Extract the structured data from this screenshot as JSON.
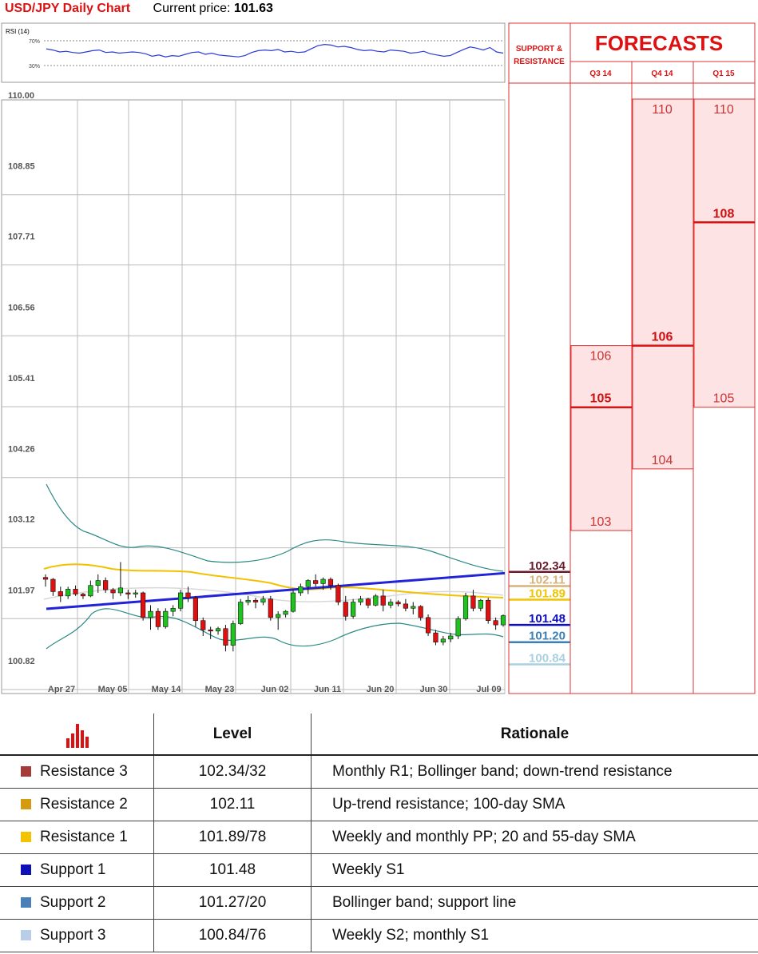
{
  "header": {
    "title": "USD/JPY Daily Chart",
    "price_label": "Current price:",
    "price": "101.63"
  },
  "rsi": {
    "label": "RSI (14)",
    "levels": [
      "70%",
      "30%"
    ],
    "values": [
      57,
      55,
      52,
      53,
      51,
      50,
      52,
      54,
      55,
      51,
      52,
      50,
      51,
      52,
      51,
      49,
      45,
      47,
      44,
      46,
      45,
      48,
      51,
      52,
      48,
      50,
      47,
      46,
      45,
      44,
      46,
      51,
      54,
      55,
      54,
      56,
      52,
      53,
      51,
      52,
      57,
      62,
      64,
      63,
      60,
      61,
      59,
      56,
      54,
      55,
      53,
      52,
      55,
      54,
      53,
      50,
      51,
      53,
      49,
      47,
      45,
      46,
      51,
      56,
      60,
      58,
      55,
      59,
      52,
      50
    ]
  },
  "chart_data": {
    "type": "candlestick",
    "title": "USD/JPY Daily Chart",
    "ylim": [
      100.82,
      110.0
    ],
    "y_ticks": [
      "110.00",
      "108.85",
      "107.71",
      "106.56",
      "105.41",
      "104.26",
      "103.12",
      "101.97",
      "100.82"
    ],
    "x_ticks": [
      "Apr 27",
      "May 05",
      "May 14",
      "May 23",
      "Jun 02",
      "Jun 11",
      "Jun 20",
      "Jun 30",
      "Jul 09"
    ],
    "ohlc": [
      [
        102.25,
        102.3,
        102.1,
        102.22
      ],
      [
        102.22,
        102.24,
        101.95,
        102.02
      ],
      [
        102.02,
        102.1,
        101.85,
        101.95
      ],
      [
        101.95,
        102.1,
        101.9,
        102.06
      ],
      [
        102.06,
        102.12,
        101.95,
        101.98
      ],
      [
        101.98,
        102.0,
        101.9,
        101.95
      ],
      [
        101.95,
        102.2,
        101.93,
        102.12
      ],
      [
        102.12,
        102.3,
        102.0,
        102.2
      ],
      [
        102.2,
        102.25,
        102.0,
        102.05
      ],
      [
        102.05,
        102.08,
        101.9,
        102.0
      ],
      [
        102.0,
        102.5,
        101.95,
        102.08
      ],
      [
        102.0,
        102.05,
        101.9,
        101.98
      ],
      [
        101.98,
        102.05,
        101.92,
        102.0
      ],
      [
        102.0,
        102.02,
        101.55,
        101.6
      ],
      [
        101.6,
        101.8,
        101.4,
        101.7
      ],
      [
        101.7,
        101.75,
        101.4,
        101.45
      ],
      [
        101.45,
        101.75,
        101.42,
        101.7
      ],
      [
        101.7,
        101.8,
        101.62,
        101.75
      ],
      [
        101.75,
        102.05,
        101.7,
        102.0
      ],
      [
        102.0,
        102.1,
        101.85,
        101.92
      ],
      [
        101.92,
        101.95,
        101.45,
        101.55
      ],
      [
        101.55,
        101.6,
        101.3,
        101.4
      ],
      [
        101.4,
        101.45,
        101.25,
        101.38
      ],
      [
        101.38,
        101.45,
        101.32,
        101.42
      ],
      [
        101.42,
        101.48,
        101.05,
        101.15
      ],
      [
        101.15,
        101.55,
        101.05,
        101.5
      ],
      [
        101.5,
        101.9,
        101.48,
        101.85
      ],
      [
        101.85,
        101.95,
        101.8,
        101.88
      ],
      [
        101.88,
        101.92,
        101.75,
        101.85
      ],
      [
        101.85,
        101.95,
        101.8,
        101.9
      ],
      [
        101.9,
        101.95,
        101.55,
        101.6
      ],
      [
        101.6,
        101.7,
        101.4,
        101.65
      ],
      [
        101.65,
        101.72,
        101.6,
        101.7
      ],
      [
        101.7,
        102.05,
        101.68,
        102.0
      ],
      [
        102.0,
        102.15,
        101.95,
        102.1
      ],
      [
        102.1,
        102.22,
        101.98,
        102.2
      ],
      [
        102.2,
        102.3,
        102.1,
        102.15
      ],
      [
        102.15,
        102.25,
        102.05,
        102.22
      ],
      [
        102.22,
        102.25,
        102.05,
        102.12
      ],
      [
        102.12,
        102.15,
        101.8,
        101.85
      ],
      [
        101.85,
        101.95,
        101.55,
        101.62
      ],
      [
        101.62,
        101.9,
        101.58,
        101.85
      ],
      [
        101.85,
        101.95,
        101.8,
        101.9
      ],
      [
        101.9,
        101.92,
        101.75,
        101.8
      ],
      [
        101.8,
        101.98,
        101.78,
        101.95
      ],
      [
        101.95,
        102.05,
        101.7,
        101.8
      ],
      [
        101.8,
        101.9,
        101.75,
        101.85
      ],
      [
        101.85,
        101.88,
        101.78,
        101.82
      ],
      [
        101.82,
        101.9,
        101.7,
        101.75
      ],
      [
        101.75,
        101.85,
        101.65,
        101.78
      ],
      [
        101.78,
        101.8,
        101.55,
        101.6
      ],
      [
        101.6,
        101.65,
        101.3,
        101.35
      ],
      [
        101.35,
        101.4,
        101.15,
        101.2
      ],
      [
        101.2,
        101.3,
        101.15,
        101.25
      ],
      [
        101.25,
        101.35,
        101.2,
        101.3
      ],
      [
        101.3,
        101.62,
        101.25,
        101.58
      ],
      [
        101.58,
        102.0,
        101.55,
        101.95
      ],
      [
        101.95,
        102.05,
        101.7,
        101.75
      ],
      [
        101.75,
        101.9,
        101.7,
        101.88
      ],
      [
        101.88,
        101.92,
        101.5,
        101.55
      ],
      [
        101.55,
        101.6,
        101.4,
        101.48
      ],
      [
        101.48,
        101.65,
        101.45,
        101.63
      ]
    ],
    "sma_blue": [
      101.74,
      102.32
    ],
    "levels": [
      {
        "value": "102.34",
        "color": "#6b1a2a"
      },
      {
        "value": "102.11",
        "color": "#d7b27a"
      },
      {
        "value": "101.89",
        "color": "#f0c400"
      },
      {
        "value": "101.48",
        "color": "#0d0dc8"
      },
      {
        "value": "101.20",
        "color": "#3c7fb4"
      },
      {
        "value": "100.84",
        "color": "#a9cfe0"
      }
    ]
  },
  "panel": {
    "sr_title_1": "SUPPORT &",
    "sr_title_2": "RESISTANCE",
    "forecast_title": "FORECASTS",
    "quarters": [
      "Q3 14",
      "Q4 14",
      "Q1 15"
    ],
    "forecasts": [
      {
        "high": 106,
        "mid": 105,
        "low": 103,
        "labels": [
          "106",
          "105",
          "103"
        ]
      },
      {
        "high": 110,
        "mid": 106,
        "low": 104,
        "labels": [
          "110",
          "106",
          "104"
        ]
      },
      {
        "high": 110,
        "mid": 108,
        "low": 105,
        "labels": [
          "110",
          "108",
          "105"
        ]
      }
    ]
  },
  "table": {
    "head_level": "Level",
    "head_rationale": "Rationale",
    "rows": [
      {
        "name": "Resistance 3",
        "color": "#a33b3b",
        "level": "102.34/32",
        "rationale": "Monthly R1; Bollinger band; down-trend resistance"
      },
      {
        "name": "Resistance 2",
        "color": "#d49a10",
        "level": "102.11",
        "rationale": "Up-trend resistance; 100-day SMA"
      },
      {
        "name": "Resistance 1",
        "color": "#f2c400",
        "level": "101.89/78",
        "rationale": "Weekly and monthly PP; 20 and 55-day SMA"
      },
      {
        "name": "Support 1",
        "color": "#1010b8",
        "level": "101.48",
        "rationale": "Weekly S1"
      },
      {
        "name": "Support 2",
        "color": "#4a7fb8",
        "level": "101.27/20",
        "rationale": "Bollinger band; support line"
      },
      {
        "name": "Support 3",
        "color": "#b8cde8",
        "level": "100.84/76",
        "rationale": "Weekly S2; monthly S1"
      }
    ]
  }
}
